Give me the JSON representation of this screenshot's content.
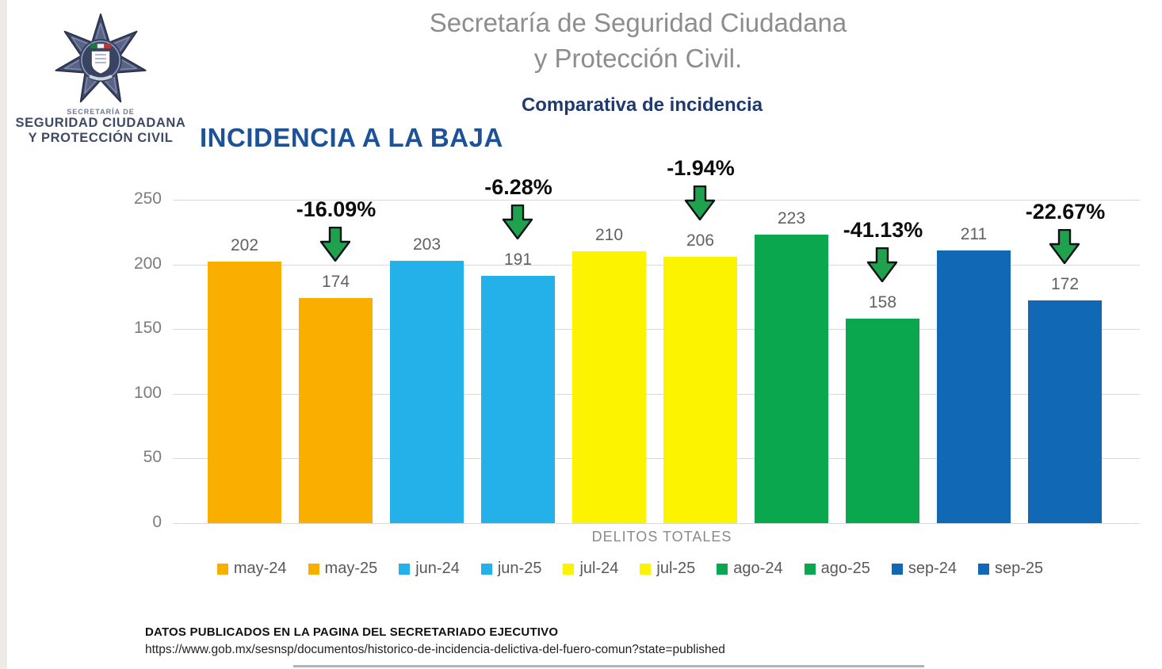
{
  "logo": {
    "badge_icon": "police-star-badge",
    "caption_small": "SECRETARÍA DE",
    "caption_line1": "SEGURIDAD CIUDADANA",
    "caption_line2": "Y PROTECCIÓN CIVIL"
  },
  "header": {
    "title_line1": "Secretaría de Seguridad Ciudadana",
    "title_line2": "y Protección Civil.",
    "subtitle": "Comparativa de incidencia",
    "heading": "INCIDENCIA A LA BAJA"
  },
  "chart_data": {
    "type": "bar",
    "title": "Comparativa de incidencia",
    "xlabel": "DELITOS TOTALES",
    "ylabel": "",
    "ylim": [
      0,
      250
    ],
    "yticks": [
      0,
      50,
      100,
      150,
      200,
      250
    ],
    "grid": true,
    "legend_position": "bottom",
    "categories": [
      "may-24",
      "may-25",
      "jun-24",
      "jun-25",
      "jul-24",
      "jul-25",
      "ago-24",
      "ago-25",
      "sep-24",
      "sep-25"
    ],
    "values": [
      202,
      174,
      203,
      191,
      210,
      206,
      223,
      158,
      211,
      172
    ],
    "colors": [
      "#FAAF00",
      "#FAAF00",
      "#24B0E8",
      "#24B0E8",
      "#FBF300",
      "#FBF300",
      "#0AA74E",
      "#0AA74E",
      "#1169B5",
      "#1169B5"
    ],
    "annotations": [
      {
        "category": "may-25",
        "label": "-16.09%"
      },
      {
        "category": "jun-25",
        "label": "-6.28%"
      },
      {
        "category": "jul-25",
        "label": "-1.94%"
      },
      {
        "category": "ago-25",
        "label": "-41.13%"
      },
      {
        "category": "sep-25",
        "label": "-22.67%"
      }
    ],
    "annotation_arrow_color": "#1FA14D"
  },
  "footer": {
    "line1": "DATOS PUBLICADOS EN LA PAGINA DEL SECRETARIADO EJECUTIVO",
    "line2": "https://www.gob.mx/sesnsp/documentos/historico-de-incidencia-delictiva-del-fuero-comun?state=published"
  },
  "colors": {
    "heading_blue": "#1d5296",
    "subtitle_navy": "#1e3a6e",
    "title_gray": "#8d8d8d",
    "gridline": "#d9d9d9",
    "value_label": "#616161",
    "arrow_green": "#1FA14D",
    "logo_navy": "#3e4965"
  }
}
